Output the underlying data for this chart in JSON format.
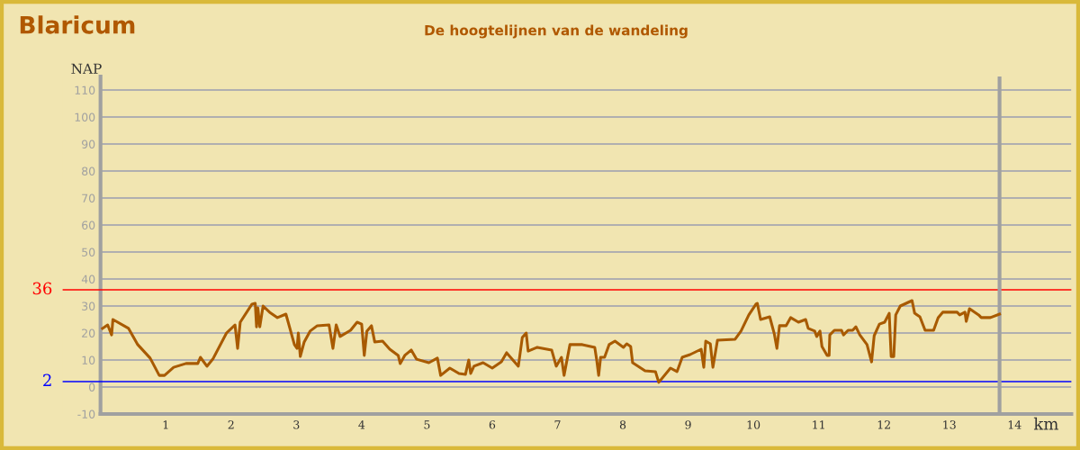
{
  "chart_data": {
    "type": "line",
    "title": "Blaricum",
    "subtitle": "De hoogtelijnen van de wandeling",
    "xlabel": "km",
    "ylabel": "NAP",
    "xlim": [
      -0.58,
      14.87
    ],
    "xticks": [
      1,
      2,
      3,
      4,
      5,
      6,
      7,
      8,
      9,
      10,
      11,
      12,
      13,
      14
    ],
    "ylim": [
      -10,
      115
    ],
    "yticks": [
      -10,
      0,
      10,
      20,
      30,
      40,
      50,
      60,
      70,
      80,
      90,
      100,
      110
    ],
    "grid": "y",
    "marker": "none",
    "line_style": "solid",
    "ref_lines": [
      {
        "axis": "y",
        "value": 36,
        "label": "36",
        "color": "#ff0000"
      },
      {
        "axis": "y",
        "value": 2,
        "label": "2",
        "color": "#0000ff"
      },
      {
        "axis": "x",
        "value": 13.77,
        "label": null,
        "color": "#a0a0a0"
      }
    ],
    "series": [
      {
        "color": "#a85a00",
        "x": [
          0.03,
          0.11,
          0.17,
          0.19,
          0.43,
          0.57,
          0.76,
          0.9,
          0.98,
          1.12,
          1.31,
          1.49,
          1.53,
          1.63,
          1.72,
          1.93,
          2.06,
          2.1,
          2.14,
          2.32,
          2.37,
          2.39,
          2.41,
          2.44,
          2.49,
          2.59,
          2.71,
          2.84,
          2.97,
          3.01,
          3.03,
          3.06,
          3.12,
          3.21,
          3.32,
          3.5,
          3.56,
          3.61,
          3.67,
          3.83,
          3.93,
          4.0,
          4.04,
          4.08,
          4.15,
          4.2,
          4.32,
          4.43,
          4.56,
          4.59,
          4.66,
          4.76,
          4.84,
          5.03,
          5.16,
          5.21,
          5.35,
          5.49,
          5.59,
          5.64,
          5.67,
          5.72,
          5.86,
          6.0,
          6.14,
          6.22,
          6.4,
          6.46,
          6.52,
          6.55,
          6.69,
          6.91,
          6.98,
          7.06,
          7.1,
          7.19,
          7.38,
          7.57,
          7.6,
          7.63,
          7.66,
          7.72,
          7.79,
          7.88,
          8.01,
          8.06,
          8.12,
          8.15,
          8.34,
          8.5,
          8.55,
          8.73,
          8.83,
          8.91,
          9.03,
          9.2,
          9.24,
          9.27,
          9.34,
          9.38,
          9.45,
          9.72,
          9.81,
          9.93,
          10.04,
          10.06,
          10.11,
          10.25,
          10.32,
          10.36,
          10.4,
          10.5,
          10.57,
          10.69,
          10.8,
          10.84,
          10.94,
          10.97,
          11.02,
          11.05,
          11.13,
          11.16,
          11.17,
          11.24,
          11.35,
          11.38,
          11.45,
          11.52,
          11.57,
          11.63,
          11.74,
          11.81,
          11.85,
          11.93,
          12.01,
          12.08,
          12.11,
          12.15,
          12.18,
          12.25,
          12.34,
          12.43,
          12.47,
          12.55,
          12.63,
          12.76,
          12.83,
          12.9,
          13.12,
          13.16,
          13.24,
          13.26,
          13.31,
          13.45,
          13.49,
          13.63,
          13.77
        ],
        "values": [
          21.7,
          23,
          19.3,
          25,
          21.7,
          15.7,
          10.7,
          4.3,
          4.3,
          7.3,
          8.7,
          8.7,
          11,
          7.7,
          10.3,
          20,
          23,
          14.3,
          24,
          30.7,
          31,
          22.3,
          29.3,
          22.3,
          30,
          27.7,
          25.7,
          27,
          15.7,
          14.3,
          20,
          11.3,
          16.7,
          20.7,
          22.7,
          23,
          14.3,
          23,
          18.7,
          21,
          24,
          23.3,
          11.7,
          20.7,
          22.7,
          16.7,
          17,
          14,
          11.7,
          8.7,
          11.7,
          13.7,
          10.3,
          9,
          10.7,
          4.3,
          7,
          5,
          4.7,
          10,
          5,
          7.7,
          9,
          7,
          9.3,
          12.7,
          7.7,
          18.3,
          20,
          13.3,
          14.7,
          13.7,
          7.7,
          11,
          4.3,
          15.7,
          15.7,
          14.7,
          10,
          4.3,
          11,
          11,
          15.7,
          17,
          14.7,
          16,
          15,
          9,
          6,
          5.7,
          1.7,
          7,
          5.7,
          11,
          12,
          14,
          7.3,
          17,
          16,
          7.3,
          17.3,
          17.7,
          20.7,
          26.7,
          30.7,
          31,
          25,
          26,
          19.7,
          14.3,
          22.7,
          22.7,
          25.7,
          24,
          25,
          21.7,
          20.7,
          18.7,
          20.7,
          15,
          11.7,
          11.7,
          19.3,
          21,
          21,
          19.3,
          21,
          21,
          22.3,
          19.3,
          15.7,
          9.3,
          19,
          23.3,
          24,
          27.3,
          11.3,
          11.3,
          26.7,
          30,
          31,
          32,
          27.3,
          26,
          21,
          21,
          25.7,
          27.7,
          27.7,
          26.7,
          27.7,
          24.3,
          29,
          26.7,
          25.7,
          25.7,
          27
        ]
      }
    ]
  }
}
